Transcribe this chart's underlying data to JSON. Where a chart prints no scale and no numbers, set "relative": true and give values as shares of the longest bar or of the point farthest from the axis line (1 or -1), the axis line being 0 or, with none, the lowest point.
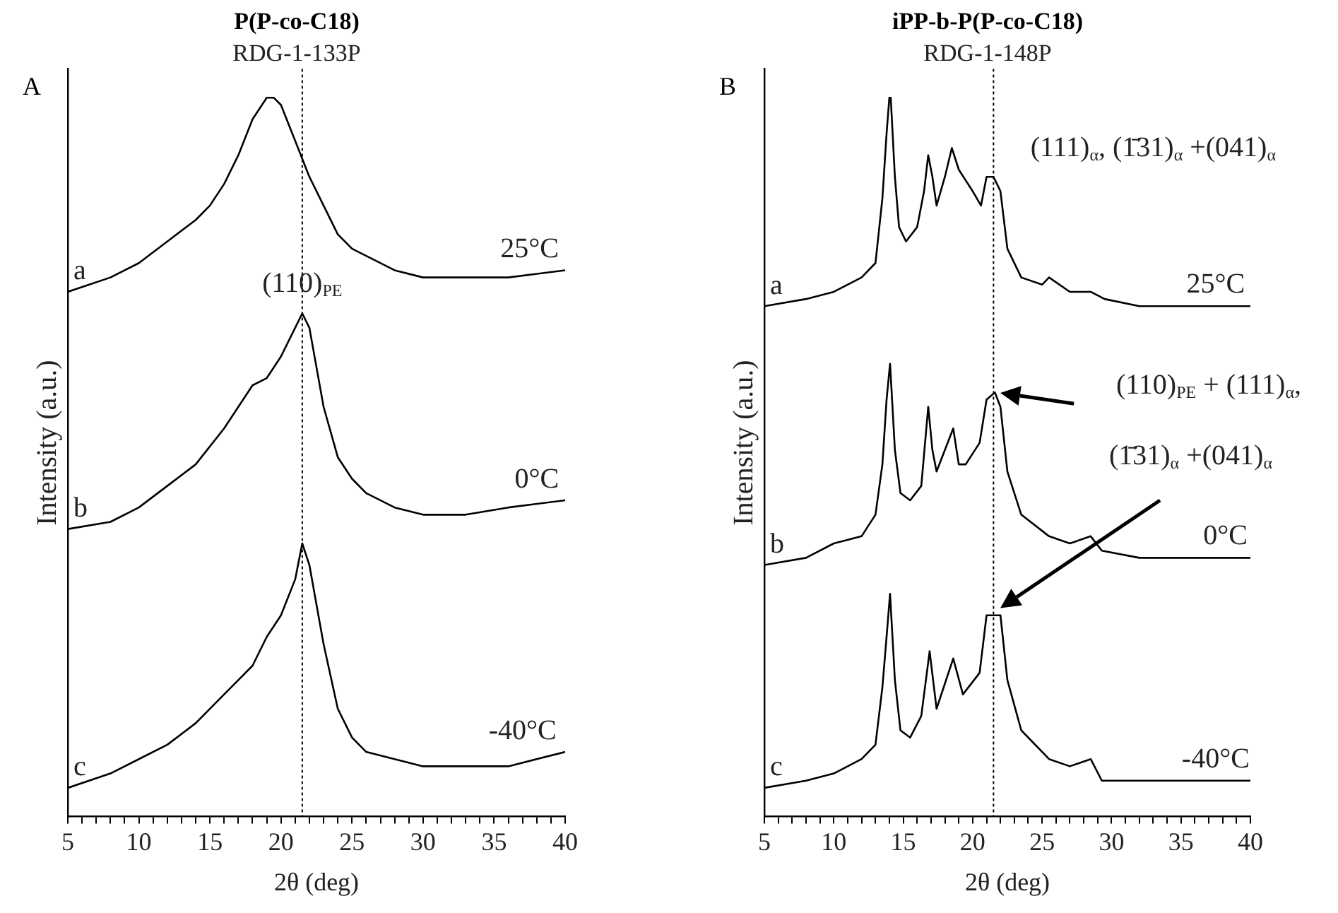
{
  "chart_data": [
    {
      "type": "line",
      "title": "P(P-co-C18)",
      "subtitle": "RDG-1-133P",
      "xlabel": "2θ (deg)",
      "ylabel": "Intensity (a.u.)",
      "relative": true,
      "tick_labels": "x",
      "line_style": "solid",
      "xlim": [
        5,
        40
      ],
      "xticks": [
        5,
        {
          "value": 6,
          "label": null
        },
        {
          "value": 7,
          "label": null
        },
        {
          "value": 8,
          "label": null
        },
        {
          "value": 9,
          "label": null
        },
        10,
        {
          "value": 11,
          "label": null
        },
        {
          "value": 12,
          "label": null
        },
        {
          "value": 13,
          "label": null
        },
        {
          "value": 14,
          "label": null
        },
        15,
        {
          "value": 16,
          "label": null
        },
        {
          "value": 17,
          "label": null
        },
        {
          "value": 18,
          "label": null
        },
        {
          "value": 19,
          "label": null
        },
        20,
        {
          "value": 21,
          "label": null
        },
        {
          "value": 22,
          "label": null
        },
        {
          "value": 23,
          "label": null
        },
        {
          "value": 24,
          "label": null
        },
        25,
        {
          "value": 26,
          "label": null
        },
        {
          "value": 27,
          "label": null
        },
        {
          "value": 28,
          "label": null
        },
        {
          "value": 29,
          "label": null
        },
        30,
        {
          "value": 31,
          "label": null
        },
        {
          "value": 32,
          "label": null
        },
        {
          "value": 33,
          "label": null
        },
        {
          "value": 34,
          "label": null
        },
        35,
        {
          "value": 36,
          "label": null
        },
        {
          "value": 37,
          "label": null
        },
        {
          "value": 38,
          "label": null
        },
        {
          "value": 39,
          "label": null
        },
        40
      ],
      "series": [
        {
          "name": "a",
          "color": "#000000",
          "x": [
            5,
            8,
            10,
            12,
            14,
            15,
            16,
            17,
            18,
            19,
            19.5,
            20,
            21,
            22,
            23,
            24,
            25,
            26,
            28,
            30,
            33,
            36,
            40
          ],
          "values": [
            0.73,
            0.75,
            0.77,
            0.8,
            0.83,
            0.85,
            0.88,
            0.92,
            0.97,
            1.0,
            1.0,
            0.99,
            0.94,
            0.89,
            0.85,
            0.81,
            0.79,
            0.78,
            0.76,
            0.75,
            0.75,
            0.75,
            0.76
          ]
        },
        {
          "name": "b",
          "color": "#000000",
          "x": [
            5,
            8,
            10,
            12,
            14,
            16,
            17,
            18,
            19,
            20,
            21,
            21.5,
            22,
            23,
            24,
            25,
            26,
            28,
            30,
            33,
            36,
            40
          ],
          "values": [
            0.4,
            0.41,
            0.43,
            0.46,
            0.49,
            0.54,
            0.57,
            0.6,
            0.61,
            0.64,
            0.68,
            0.7,
            0.68,
            0.57,
            0.5,
            0.47,
            0.45,
            0.43,
            0.42,
            0.42,
            0.43,
            0.44
          ]
        },
        {
          "name": "c",
          "color": "#000000",
          "x": [
            5,
            8,
            10,
            12,
            14,
            16,
            17,
            18,
            19,
            20,
            21,
            21.5,
            22,
            23,
            24,
            25,
            26,
            28,
            30,
            33,
            36,
            40
          ],
          "values": [
            0.04,
            0.06,
            0.08,
            0.1,
            0.13,
            0.17,
            0.19,
            0.21,
            0.25,
            0.28,
            0.33,
            0.38,
            0.35,
            0.24,
            0.15,
            0.11,
            0.09,
            0.08,
            0.07,
            0.07,
            0.07,
            0.09
          ]
        }
      ],
      "ref_lines": [
        {
          "axis": "x",
          "value": 21.5,
          "line_style": "dotted",
          "color": "#000000"
        }
      ],
      "annotations": [
        "A",
        "25°C",
        "0°C",
        "-40°C",
        "(110)$_{PE}$"
      ]
    },
    {
      "type": "line",
      "title": "iPP-b-P(P-co-C18)",
      "subtitle": "RDG-1-148P",
      "xlabel": "2θ (deg)",
      "ylabel": "Intensity (a.u.)",
      "relative": true,
      "tick_labels": "x",
      "line_style": "solid",
      "xlim": [
        5,
        40
      ],
      "xticks": [
        5,
        {
          "value": 6,
          "label": null
        },
        {
          "value": 7,
          "label": null
        },
        {
          "value": 8,
          "label": null
        },
        {
          "value": 9,
          "label": null
        },
        10,
        {
          "value": 11,
          "label": null
        },
        {
          "value": 12,
          "label": null
        },
        {
          "value": 13,
          "label": null
        },
        {
          "value": 14,
          "label": null
        },
        15,
        {
          "value": 16,
          "label": null
        },
        {
          "value": 17,
          "label": null
        },
        {
          "value": 18,
          "label": null
        },
        {
          "value": 19,
          "label": null
        },
        20,
        {
          "value": 21,
          "label": null
        },
        {
          "value": 22,
          "label": null
        },
        {
          "value": 23,
          "label": null
        },
        {
          "value": 24,
          "label": null
        },
        25,
        {
          "value": 26,
          "label": null
        },
        {
          "value": 27,
          "label": null
        },
        {
          "value": 28,
          "label": null
        },
        {
          "value": 29,
          "label": null
        },
        30,
        {
          "value": 31,
          "label": null
        },
        {
          "value": 32,
          "label": null
        },
        {
          "value": 33,
          "label": null
        },
        {
          "value": 34,
          "label": null
        },
        35,
        {
          "value": 36,
          "label": null
        },
        {
          "value": 37,
          "label": null
        },
        {
          "value": 38,
          "label": null
        },
        {
          "value": 39,
          "label": null
        },
        40
      ],
      "series": [
        {
          "name": "a",
          "color": "#000000",
          "x": [
            5,
            8,
            10,
            12,
            13,
            13.5,
            13.8,
            14,
            14.1,
            14.4,
            14.7,
            15.2,
            16,
            16.5,
            16.8,
            17.1,
            17.4,
            18,
            18.5,
            19,
            20,
            20.6,
            21,
            21.5,
            22,
            22.5,
            23.5,
            25,
            25.5,
            27,
            28.5,
            29.5,
            32,
            36,
            40
          ],
          "values": [
            0.71,
            0.72,
            0.73,
            0.75,
            0.77,
            0.86,
            0.95,
            1.0,
            1.0,
            0.89,
            0.82,
            0.8,
            0.82,
            0.87,
            0.92,
            0.89,
            0.85,
            0.89,
            0.93,
            0.9,
            0.87,
            0.85,
            0.89,
            0.89,
            0.87,
            0.79,
            0.75,
            0.74,
            0.75,
            0.73,
            0.73,
            0.72,
            0.71,
            0.71,
            0.71
          ]
        },
        {
          "name": "b",
          "color": "#000000",
          "x": [
            5,
            8,
            10,
            12,
            13,
            13.5,
            13.8,
            14.05,
            14.4,
            14.8,
            15.5,
            16.3,
            16.8,
            17.1,
            17.4,
            18.6,
            19,
            19.5,
            20.5,
            21,
            21.6,
            22,
            22.5,
            23.5,
            25.5,
            27,
            28.5,
            29.3,
            32,
            40
          ],
          "values": [
            0.35,
            0.36,
            0.38,
            0.39,
            0.42,
            0.49,
            0.58,
            0.63,
            0.51,
            0.45,
            0.44,
            0.46,
            0.57,
            0.51,
            0.48,
            0.54,
            0.49,
            0.49,
            0.52,
            0.58,
            0.59,
            0.57,
            0.48,
            0.42,
            0.39,
            0.38,
            0.39,
            0.37,
            0.36,
            0.36
          ]
        },
        {
          "name": "c",
          "color": "#000000",
          "x": [
            5,
            8,
            10,
            12,
            13,
            13.5,
            13.8,
            14.05,
            14.4,
            14.8,
            15.5,
            16.3,
            16.9,
            17.4,
            18.6,
            19.3,
            20.5,
            21,
            21.5,
            22,
            22.5,
            23.5,
            25.5,
            27,
            28.5,
            29.3,
            32,
            40
          ],
          "values": [
            0.04,
            0.05,
            0.06,
            0.08,
            0.1,
            0.18,
            0.25,
            0.31,
            0.19,
            0.12,
            0.11,
            0.14,
            0.23,
            0.15,
            0.22,
            0.17,
            0.2,
            0.28,
            0.28,
            0.28,
            0.19,
            0.12,
            0.08,
            0.07,
            0.08,
            0.05,
            0.05,
            0.05
          ]
        }
      ],
      "ref_lines": [
        {
          "axis": "x",
          "value": 21.5,
          "line_style": "dotted",
          "color": "#000000"
        }
      ],
      "annotations": [
        "B",
        "25°C",
        "0°C",
        "-40°C",
        "(111)$_{α}$, (1̄31)$_{α}$ +(041)$_{α}$",
        "(110)$_{PE}$ + (111)$_{α}$,",
        "(1̄31)$_{α}$ +(041)$_{α}$"
      ]
    }
  ]
}
